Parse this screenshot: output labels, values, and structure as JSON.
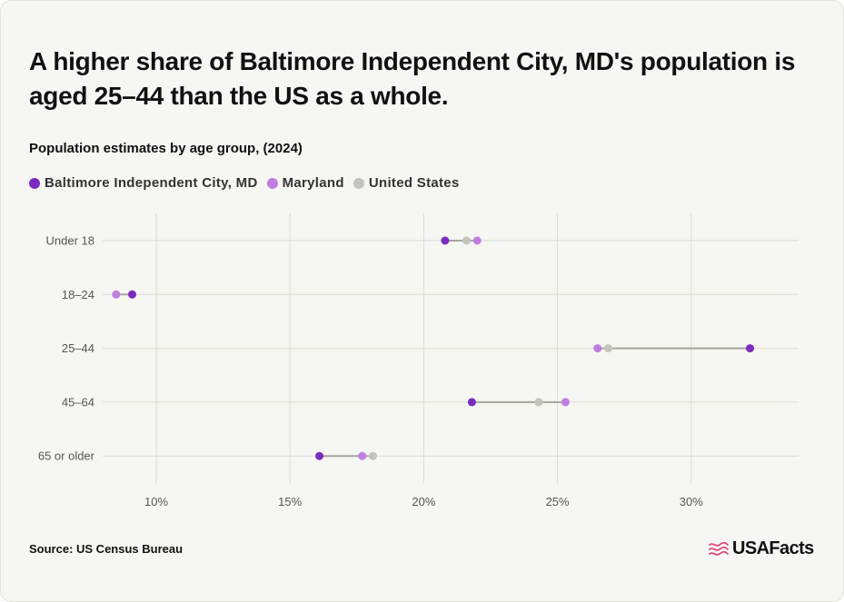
{
  "title": "A higher share of Baltimore Independent City, MD's population is aged 25–44 than the US as a whole.",
  "subtitle": "Population estimates by age group, (2024)",
  "source": "Source: US Census Bureau",
  "logo_text": "USAFacts",
  "colors": {
    "baltimore": "#7b2cbf",
    "maryland": "#c07ee0",
    "united_states": "#c4c4bc",
    "connector": "#a6a6a0",
    "grid": "#dcdcd6",
    "logo_flag": "#e0487f"
  },
  "chart_data": {
    "type": "dot-range",
    "title": "Population estimates by age group, (2024)",
    "categories": [
      "Under 18",
      "18–24",
      "25–44",
      "45–64",
      "65 or older"
    ],
    "series": [
      {
        "name": "Baltimore Independent City, MD",
        "values": [
          20.8,
          9.1,
          32.2,
          21.8,
          16.1
        ]
      },
      {
        "name": "Maryland",
        "values": [
          22.0,
          8.5,
          26.5,
          25.3,
          17.7
        ]
      },
      {
        "name": "United States",
        "values": [
          21.6,
          9.1,
          26.9,
          24.3,
          18.1
        ]
      }
    ],
    "x_ticks": [
      10,
      15,
      20,
      25,
      30
    ],
    "x_tick_labels": [
      "10%",
      "15%",
      "20%",
      "25%",
      "30%"
    ],
    "xlim": [
      10,
      34
    ],
    "unit": "%",
    "grid": true,
    "legend_position": "top-left"
  }
}
